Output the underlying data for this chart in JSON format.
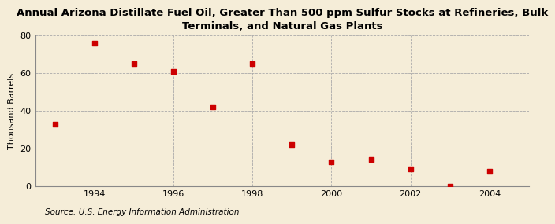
{
  "title_line1": "Annual Arizona Distillate Fuel Oil, Greater Than 500 ppm Sulfur Stocks at Refineries, Bulk",
  "title_line2": "Terminals, and Natural Gas Plants",
  "ylabel": "Thousand Barrels",
  "source": "Source: U.S. Energy Information Administration",
  "x": [
    1993,
    1994,
    1995,
    1996,
    1997,
    1998,
    1999,
    2000,
    2001,
    2002,
    2003,
    2004
  ],
  "y": [
    33,
    76,
    65,
    61,
    42,
    65,
    22,
    13,
    14,
    9,
    0,
    8
  ],
  "xlim": [
    1992.5,
    2005.0
  ],
  "ylim": [
    0,
    80
  ],
  "yticks": [
    0,
    20,
    40,
    60,
    80
  ],
  "xticks": [
    1994,
    1996,
    1998,
    2000,
    2002,
    2004
  ],
  "marker_color": "#cc0000",
  "marker": "s",
  "marker_size": 4,
  "background_color": "#f5edd8",
  "grid_color": "#aaaaaa",
  "title_fontsize": 9.5,
  "label_fontsize": 8,
  "tick_fontsize": 8,
  "source_fontsize": 7.5
}
